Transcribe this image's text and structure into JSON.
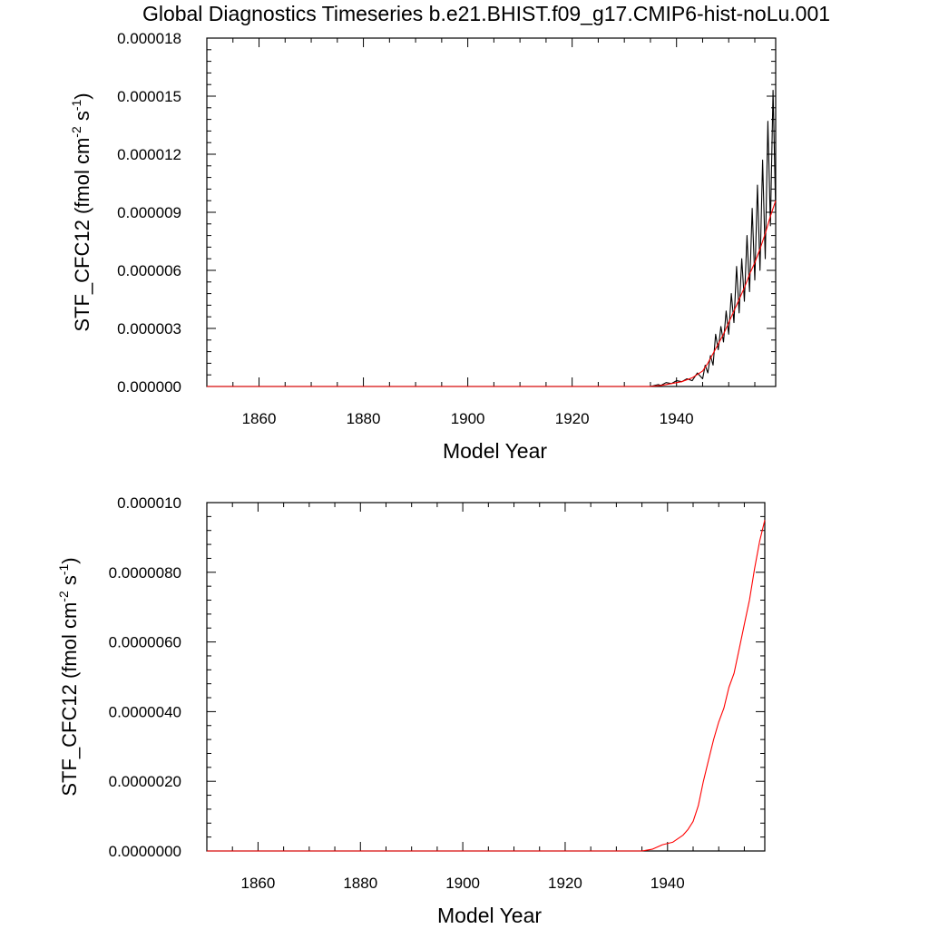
{
  "title": "Global Diagnostics Timeseries b.e21.BHIST.f09_g17.CMIP6-hist-noLu.001",
  "colors": {
    "raw_series": "#000000",
    "smooth_series": "#ff0000",
    "axes": "#000000"
  },
  "chart_data": [
    {
      "type": "line",
      "xlabel": "Model Year",
      "ylabel_parts": [
        "STF_CFC12 (fmol cm",
        "-2",
        " s",
        "-1",
        ")"
      ],
      "xlim": [
        1850,
        1959
      ],
      "ylim": [
        0,
        1.8e-05
      ],
      "xticks": [
        1860,
        1880,
        1900,
        1920,
        1940
      ],
      "xtick_labels": [
        "1860",
        "1880",
        "1900",
        "1920",
        "1940"
      ],
      "yticks": [
        0,
        3e-06,
        6e-06,
        9e-06,
        1.2e-05,
        1.5e-05,
        1.8e-05
      ],
      "ytick_labels": [
        "0.000000",
        "0.000003",
        "0.000006",
        "0.000009",
        "0.000012",
        "0.000015",
        "0.000018"
      ],
      "grid": false,
      "series": [
        {
          "role": "raw",
          "color": "#000000",
          "x": [
            1850,
            1935,
            1936.5,
            1937,
            1938,
            1939,
            1940,
            1941,
            1942,
            1943,
            1944,
            1945,
            1945.5,
            1946,
            1946.5,
            1947,
            1947.5,
            1948,
            1948.5,
            1949,
            1949.5,
            1950,
            1950.5,
            1951,
            1951.5,
            1952,
            1952.5,
            1953,
            1953.5,
            1954,
            1954.5,
            1955,
            1955.5,
            1956,
            1956.5,
            1957,
            1957.5,
            1958,
            1958.5,
            1959
          ],
          "y": [
            0,
            0,
            1e-07,
            5e-08,
            2e-07,
            1.5e-07,
            3e-07,
            2.5e-07,
            4e-07,
            3e-07,
            7e-07,
            4e-07,
            1.1e-06,
            7e-07,
            1.6e-06,
            1.1e-06,
            2.7e-06,
            1.9e-06,
            3.1e-06,
            2.3e-06,
            3.9e-06,
            2.7e-06,
            4.8e-06,
            3.3e-06,
            6.2e-06,
            3.8e-06,
            6.6e-06,
            4.4e-06,
            7.8e-06,
            4.9e-06,
            9.2e-06,
            5.5e-06,
            1.04e-05,
            6e-06,
            1.17e-05,
            6.6e-06,
            1.37e-05,
            8.3e-06,
            1.53e-05,
            9e-06
          ]
        },
        {
          "role": "smoothed",
          "color": "#ff0000",
          "x": [
            1850,
            1935,
            1937,
            1939,
            1941,
            1943,
            1945,
            1946,
            1947,
            1948,
            1949,
            1950,
            1951,
            1952,
            1953,
            1954,
            1955,
            1956,
            1957,
            1958,
            1959
          ],
          "y": [
            0,
            0,
            5e-08,
            1.5e-07,
            2.5e-07,
            4.5e-07,
            8e-07,
            1.2e-06,
            1.7e-06,
            2.2e-06,
            2.7e-06,
            3.3e-06,
            3.9e-06,
            4.5e-06,
            5.1e-06,
            5.8e-06,
            6.4e-06,
            7.1e-06,
            7.9e-06,
            8.8e-06,
            9.6e-06
          ]
        }
      ]
    },
    {
      "type": "line",
      "xlabel": "Model Year",
      "ylabel_parts": [
        "STF_CFC12 (fmol cm",
        "-2",
        " s",
        "-1",
        ")"
      ],
      "xlim": [
        1850,
        1959
      ],
      "ylim": [
        0,
        1e-05
      ],
      "xticks": [
        1860,
        1880,
        1900,
        1920,
        1940
      ],
      "xtick_labels": [
        "1860",
        "1880",
        "1900",
        "1920",
        "1940"
      ],
      "yticks": [
        0,
        2e-06,
        4e-06,
        6e-06,
        8e-06,
        1e-05
      ],
      "ytick_labels": [
        "0.0000000",
        "0.0000020",
        "0.0000040",
        "0.0000060",
        "0.0000080",
        "0.000010"
      ],
      "grid": false,
      "series": [
        {
          "role": "smoothed",
          "color": "#ff0000",
          "x": [
            1850,
            1935,
            1937,
            1939,
            1941,
            1943,
            1944,
            1945,
            1946,
            1947,
            1948,
            1949,
            1950,
            1951,
            1952,
            1953,
            1954,
            1955,
            1956,
            1957,
            1958,
            1959
          ],
          "y": [
            0,
            0,
            5e-08,
            1.8e-07,
            2.5e-07,
            4.5e-07,
            6.2e-07,
            8.5e-07,
            1.3e-06,
            2e-06,
            2.6e-06,
            3.2e-06,
            3.7e-06,
            4.1e-06,
            4.7e-06,
            5.1e-06,
            5.8e-06,
            6.5e-06,
            7.2e-06,
            8.1e-06,
            8.9e-06,
            9.5e-06
          ]
        }
      ]
    }
  ]
}
